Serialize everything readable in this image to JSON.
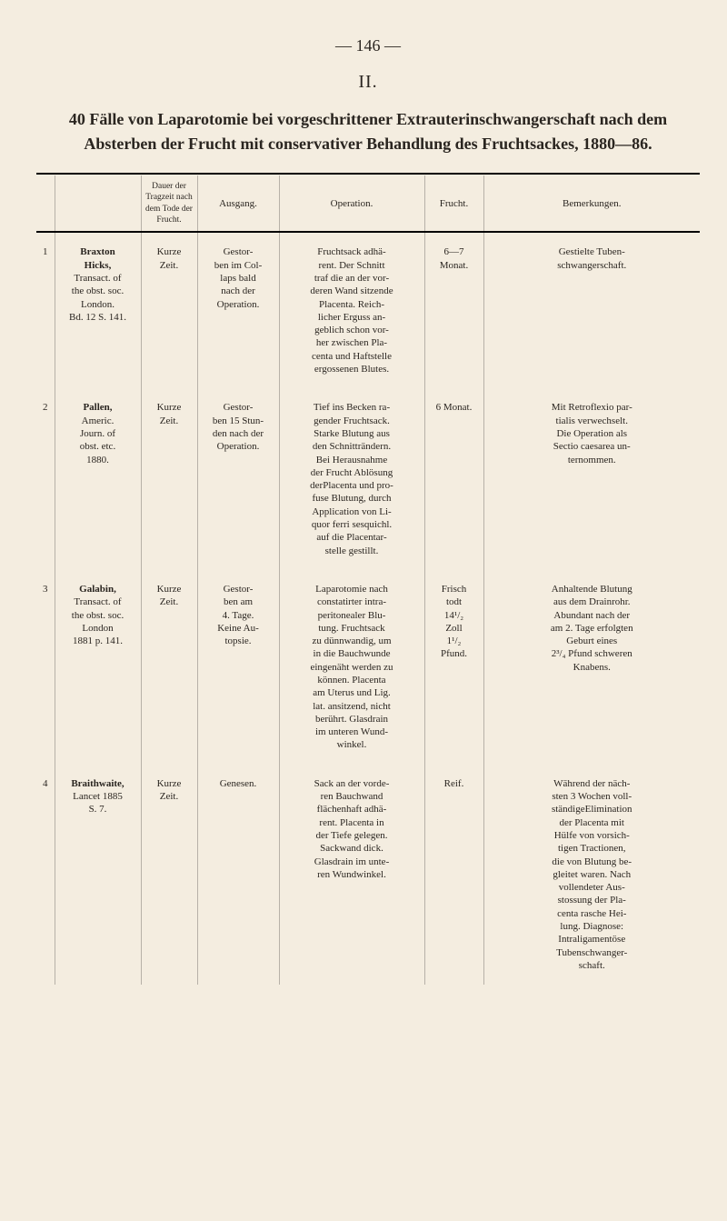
{
  "page_number_line": "—   146   —",
  "section_number": "II.",
  "title_lead": "40 Fälle von Laparotomie bei vorgeschrittener Extrauterinschwangerschaft nach dem Absterben der Frucht mit conservativer Behandlung des Fruchtsackes, 1880—86.",
  "columns": {
    "idx": "",
    "source": "",
    "duration": "Dauer der Tragzeit nach dem Tode der Frucht.",
    "ausgang": "Ausgang.",
    "operation": "Operation.",
    "frucht": "Frucht.",
    "bemerk": "Bemerkungen."
  },
  "rows": [
    {
      "idx": "1",
      "src_name": "Braxton\nHicks,",
      "src_pub": "Transact. of\nthe obst. soc.\nLondon.\nBd. 12 S. 141.",
      "duration": "Kurze\nZeit.",
      "ausgang": "Gestor-\nben im Col-\nlaps bald\nnach der\nOperation.",
      "operation": "Fruchtsack adhä-\nrent. Der Schnitt\ntraf die an der vor-\nderen Wand sitzende\nPlacenta. Reich-\nlicher Erguss an-\ngeblich schon vor-\nher zwischen Pla-\ncenta und Haftstelle\nergossenen Blutes.",
      "frucht": "6—7\nMonat.",
      "bemerk": "Gestielte Tuben-\nschwangerschaft."
    },
    {
      "idx": "2",
      "src_name": "Pallen,",
      "src_pub": "Americ.\nJourn. of\nobst. etc.\n1880.",
      "duration": "Kurze\nZeit.",
      "ausgang": "Gestor-\nben 15 Stun-\nden nach der\nOperation.",
      "operation": "Tief ins Becken ra-\ngender Fruchtsack.\nStarke Blutung aus\nden Schnitträndern.\nBei Herausnahme\nder Frucht Ablösung\nderPlacenta und pro-\nfuse Blutung, durch\nApplication von Li-\nquor ferri sesquichl.\nauf die Placentar-\nstelle gestillt.",
      "frucht": "6 Monat.",
      "bemerk": "Mit Retroflexio par-\ntialis verwechselt.\nDie Operation als\nSectio caesarea un-\nternommen."
    },
    {
      "idx": "3",
      "src_name": "Galabin,",
      "src_pub": "Transact. of\nthe obst. soc.\nLondon\n1881 p. 141.",
      "duration": "Kurze\nZeit.",
      "ausgang": "Gestor-\nben am\n4. Tage.\nKeine Au-\ntopsie.",
      "operation": "Laparotomie nach\nconstatirter intra-\nperitonealer Blu-\ntung. Fruchtsack\nzu dünnwandig, um\nin die Bauchwunde\neingenäht werden zu\nkönnen. Placenta\nam Uterus und Lig.\nlat. ansitzend, nicht\nberührt. Glasdrain\nim unteren Wund-\nwinkel.",
      "frucht": "Frisch\ntodt\n14¹/₂\nZoll\n1¹/₂\nPfund.",
      "bemerk": "Anhaltende Blutung\naus dem Drainrohr.\nAbundant nach der\nam 2. Tage erfolgten\nGeburt eines\n2³/₄ Pfund schweren\nKnabens."
    },
    {
      "idx": "4",
      "src_name": "Braithwaite,",
      "src_pub": "Lancet 1885\nS. 7.",
      "duration": "Kurze\nZeit.",
      "ausgang": "Genesen.",
      "operation": "Sack an der vorde-\nren Bauchwand\nflächenhaft adhä-\nrent. Placenta in\nder Tiefe gelegen.\nSackwand dick.\nGlasdrain im unte-\nren Wundwinkel.",
      "frucht": "Reif.",
      "bemerk": "Während der näch-\nsten 3 Wochen voll-\nständigeElimination\nder Placenta mit\nHülfe von vorsich-\ntigen Tractionen,\ndie von Blutung be-\ngleitet waren. Nach\nvollendeter Aus-\nstossung der Pla-\ncenta rasche Hei-\nlung. Diagnose:\nIntraligamentöse\nTubenschwanger-\nschaft."
    }
  ]
}
